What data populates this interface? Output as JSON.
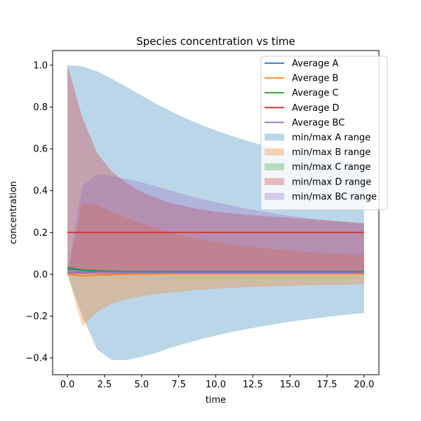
{
  "chart_data": {
    "type": "line",
    "title": "Species concentration vs time",
    "xlabel": "time",
    "ylabel": "concentration",
    "xlim": [
      -1,
      21
    ],
    "ylim": [
      -0.48,
      1.07
    ],
    "xticks": [
      0.0,
      2.5,
      5.0,
      7.5,
      10.0,
      12.5,
      15.0,
      17.5,
      20.0
    ],
    "xtick_labels": [
      "0.0",
      "2.5",
      "5.0",
      "7.5",
      "10.0",
      "12.5",
      "15.0",
      "17.5",
      "20.0"
    ],
    "yticks": [
      -0.4,
      -0.2,
      0.0,
      0.2,
      0.4,
      0.6,
      0.8,
      1.0
    ],
    "ytick_labels": [
      "−0.4",
      "−0.2",
      "0.0",
      "0.2",
      "0.4",
      "0.6",
      "0.8",
      "1.0"
    ],
    "grid": false,
    "legend_position": "top-right",
    "x": [
      0,
      1,
      2,
      3,
      4,
      5,
      6,
      7,
      8,
      9,
      10,
      11,
      12,
      13,
      14,
      15,
      16,
      17,
      18,
      19,
      20
    ],
    "series": [
      {
        "name": "Average A",
        "color": "#1f77b4",
        "values": [
          0.025,
          0.02,
          0.015,
          0.012,
          0.011,
          0.011,
          0.011,
          0.011,
          0.011,
          0.011,
          0.011,
          0.011,
          0.011,
          0.011,
          0.011,
          0.011,
          0.011,
          0.011,
          0.011,
          0.011,
          0.011
        ]
      },
      {
        "name": "Average B",
        "color": "#ff7f0e",
        "values": [
          0.0,
          -0.008,
          -0.005,
          -0.002,
          0.0,
          0.001,
          0.002,
          0.003,
          0.003,
          0.003,
          0.003,
          0.003,
          0.003,
          0.003,
          0.003,
          0.003,
          0.003,
          0.003,
          0.003,
          0.003,
          0.003
        ]
      },
      {
        "name": "Average C",
        "color": "#2ca02c",
        "values": [
          0.033,
          0.022,
          0.018,
          0.016,
          0.015,
          0.015,
          0.015,
          0.015,
          0.015,
          0.015,
          0.015,
          0.015,
          0.015,
          0.015,
          0.015,
          0.015,
          0.015,
          0.015,
          0.015,
          0.015,
          0.015
        ]
      },
      {
        "name": "Average D",
        "color": "#d62728",
        "values": [
          0.2,
          0.2,
          0.2,
          0.2,
          0.2,
          0.2,
          0.2,
          0.2,
          0.2,
          0.2,
          0.2,
          0.2,
          0.2,
          0.2,
          0.2,
          0.2,
          0.2,
          0.2,
          0.2,
          0.2,
          0.2
        ]
      },
      {
        "name": "Average BC",
        "color": "#9467bd",
        "values": [
          0.01,
          0.01,
          0.012,
          0.012,
          0.012,
          0.012,
          0.012,
          0.012,
          0.012,
          0.012,
          0.012,
          0.012,
          0.012,
          0.012,
          0.012,
          0.012,
          0.012,
          0.012,
          0.012,
          0.012,
          0.012
        ]
      }
    ],
    "ranges": [
      {
        "name": "min/max A range",
        "color": "#1f77b4",
        "opacity": 0.3,
        "min": [
          0.0,
          -0.2,
          -0.36,
          -0.41,
          -0.41,
          -0.395,
          -0.375,
          -0.35,
          -0.33,
          -0.31,
          -0.293,
          -0.277,
          -0.263,
          -0.25,
          -0.238,
          -0.227,
          -0.217,
          -0.208,
          -0.2,
          -0.192,
          -0.185
        ],
        "max": [
          1.0,
          0.995,
          0.97,
          0.935,
          0.895,
          0.855,
          0.815,
          0.778,
          0.745,
          0.715,
          0.688,
          0.663,
          0.641,
          0.621,
          0.603,
          0.587,
          0.572,
          0.558,
          0.546,
          0.535,
          0.525
        ]
      },
      {
        "name": "min/max B range",
        "color": "#ff7f0e",
        "opacity": 0.3,
        "min": [
          0.0,
          -0.25,
          -0.18,
          -0.14,
          -0.12,
          -0.105,
          -0.095,
          -0.087,
          -0.08,
          -0.074,
          -0.069,
          -0.065,
          -0.062,
          -0.059,
          -0.057,
          -0.055,
          -0.053,
          -0.051,
          -0.05,
          -0.049,
          -0.048
        ],
        "max": [
          0.0,
          0.34,
          0.33,
          0.3,
          0.27,
          0.245,
          0.22,
          0.2,
          0.183,
          0.168,
          0.155,
          0.144,
          0.135,
          0.127,
          0.12,
          0.114,
          0.109,
          0.104,
          0.1,
          0.097,
          0.094
        ]
      },
      {
        "name": "min/max C range",
        "color": "#2ca02c",
        "opacity": 0.3,
        "min": [
          0.03,
          0.015,
          0.012,
          0.012,
          0.012,
          0.012,
          0.012,
          0.012,
          0.012,
          0.012,
          0.012,
          0.012,
          0.012,
          0.012,
          0.012,
          0.012,
          0.012,
          0.012,
          0.012,
          0.012,
          0.012
        ],
        "max": [
          0.04,
          0.025,
          0.02,
          0.018,
          0.017,
          0.017,
          0.017,
          0.017,
          0.017,
          0.017,
          0.017,
          0.017,
          0.017,
          0.017,
          0.017,
          0.017,
          0.017,
          0.017,
          0.017,
          0.017,
          0.017
        ]
      },
      {
        "name": "min/max D range",
        "color": "#d62728",
        "opacity": 0.3,
        "min": [
          0.0,
          0.0,
          0.0,
          0.0,
          0.0,
          0.0,
          0.0,
          0.0,
          0.0,
          0.0,
          0.0,
          0.0,
          0.0,
          0.0,
          0.0,
          0.0,
          0.0,
          0.0,
          0.0,
          0.0,
          0.0
        ],
        "max": [
          1.0,
          0.75,
          0.58,
          0.49,
          0.435,
          0.395,
          0.365,
          0.34,
          0.325,
          0.31,
          0.3,
          0.292,
          0.285,
          0.28,
          0.275,
          0.27,
          0.265,
          0.26,
          0.255,
          0.25,
          0.245
        ]
      },
      {
        "name": "min/max BC range",
        "color": "#9467bd",
        "opacity": 0.3,
        "min": [
          0.0,
          0.0,
          0.0,
          0.0,
          0.0,
          0.0,
          0.0,
          0.0,
          0.0,
          0.0,
          0.0,
          0.0,
          0.0,
          0.0,
          0.0,
          0.0,
          0.0,
          0.0,
          0.0,
          0.0,
          0.0
        ],
        "max": [
          0.01,
          0.42,
          0.48,
          0.47,
          0.455,
          0.44,
          0.42,
          0.4,
          0.38,
          0.36,
          0.345,
          0.33,
          0.315,
          0.302,
          0.29,
          0.28,
          0.27,
          0.262,
          0.254,
          0.247,
          0.24
        ]
      }
    ]
  }
}
